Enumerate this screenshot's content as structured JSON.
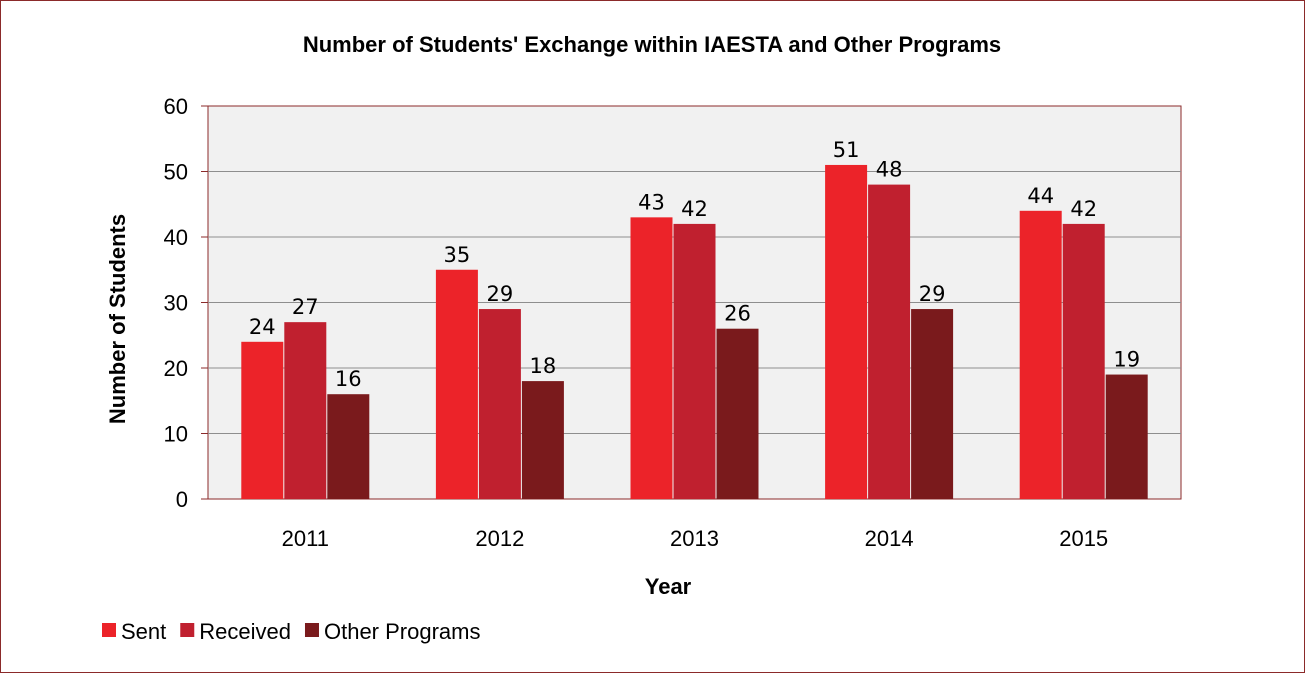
{
  "chart_data": {
    "type": "bar",
    "title": "Number of Students' Exchange within IAESTA and Other Programs",
    "xlabel": "Year",
    "ylabel": "Number of Students",
    "categories": [
      "2011",
      "2012",
      "2013",
      "2014",
      "2015"
    ],
    "ylim": [
      0,
      60
    ],
    "yticks": [
      0,
      10,
      20,
      30,
      40,
      50,
      60
    ],
    "grid": true,
    "legend_position": "bottom-left",
    "series": [
      {
        "name": "Sent",
        "color": "#ec2329",
        "values": [
          24,
          35,
          43,
          51,
          44
        ],
        "labels": [
          "24",
          "35",
          "43",
          "51",
          "44"
        ]
      },
      {
        "name": "Received",
        "color": "#c0202f",
        "values": [
          27,
          29,
          42,
          48,
          42
        ],
        "labels": [
          "27",
          "29",
          "42",
          "48",
          "42"
        ]
      },
      {
        "name": "Other Programs",
        "color": "#7a1a1c",
        "values": [
          16,
          18,
          26,
          29,
          19
        ],
        "labels": [
          "16",
          "18",
          "26",
          "29",
          "19"
        ]
      }
    ]
  }
}
